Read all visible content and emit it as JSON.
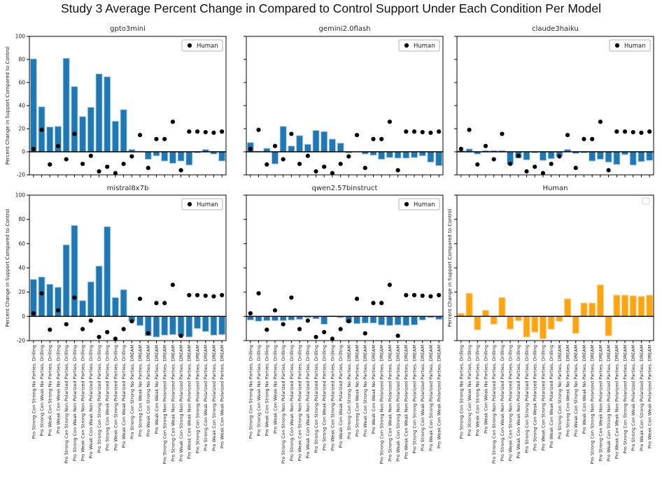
{
  "figure": {
    "title": "Study 3 Average Percent Change in Compared to Control Support Under Each Condition Per Model",
    "background": "#ffffff"
  },
  "chart_data": {
    "type": "bar",
    "layout": {
      "rows": 2,
      "cols": 3,
      "grid": false,
      "legend_position": "upper right",
      "xticklabels_rotation": 90
    },
    "ylabel": "Percent Change in Support Compared to Control",
    "ylim": [
      -20,
      100
    ],
    "yticks": [
      100,
      80,
      60,
      40,
      20,
      0,
      -20
    ],
    "legend_label": "Human",
    "colors": {
      "model_bar": "#1f77b4",
      "model_bar_edge": "#a8cbe4",
      "human_bar": "#ffa510",
      "human_bar_edge": "#ffcf8d",
      "dot": "#000000",
      "axis": "#000000",
      "zero_line": "#000000",
      "legend_border": "#9e9e9e"
    },
    "categories": [
      "Pro Strong Con Strong No Parties, Drilling",
      "Pro Strong Con Weak No Parties, Drilling",
      "Pro Weak Con Strong No Parties, Drilling",
      "Pro Weak Con Weak No Parties, Drilling",
      "Pro Strong Con Strong Non Polarized Parties, Drilling",
      "Pro Strong Con Weak Non Polarized Parties, Drilling",
      "Pro Weak Con Strong Non Polarized Parties, Drilling",
      "Pro Weak Con Weak Non Polarized Parties, Drilling",
      "Pro Strong Con Strong Polarized Parties, Drilling",
      "Pro Strong Con Weak Polarized Parties, Drilling",
      "Pro Weak Con Strong Polarized Parties, Drilling",
      "Pro Weak Con Weak Polarized Parties, Drilling",
      "Pro Strong Con Strong No Parties, DREAM",
      "Pro Strong Con Weak No Parties, DREAM",
      "Pro Weak Con Strong No Parties, DREAM",
      "Pro Weak Con Weak No Parties, DREAM",
      "Pro Strong Con Strong Non Polarized Parties, DREAM",
      "Pro Strong Con Weak Non Polarized Parties, DREAM",
      "Pro Weak Con Strong Non Polarized Parties, DREAM",
      "Pro Weak Con Weak Non Polarized Parties, DREAM",
      "Pro Strong Con Strong Polarized Parties, DREAM",
      "Pro Strong Con Weak Polarized Parties, DREAM",
      "Pro Weak Con Strong Polarized Parties, DREAM",
      "Pro Weak Con Weak Polarized Parties, DREAM"
    ],
    "human_reference": [
      2.5,
      19,
      -11,
      5,
      -6.5,
      15.5,
      -10.5,
      -3.5,
      -17,
      -13,
      -18.5,
      -10.5,
      -4,
      14.5,
      -14,
      11,
      11,
      26,
      -16,
      17.5,
      17.5,
      17,
      16.5,
      17.5
    ],
    "subplots": [
      {
        "title": "gpto3mini",
        "series": "model",
        "show_yticklabels": true,
        "show_ylabel": true,
        "show_xticklabels": false,
        "legend": "human",
        "values": [
          80.5,
          39,
          21.5,
          22,
          81,
          56.5,
          30.5,
          38.5,
          67.5,
          65,
          26.5,
          36.5,
          2,
          0.5,
          -6.5,
          -3.5,
          -8,
          -10,
          -8,
          -11.5,
          -1,
          2,
          -2,
          -8
        ]
      },
      {
        "title": "gemini2.0flash",
        "series": "model",
        "show_yticklabels": false,
        "show_ylabel": false,
        "show_xticklabels": false,
        "legend": "human",
        "values": [
          8,
          0.5,
          3,
          -10.5,
          22,
          5,
          14,
          6.5,
          18.5,
          17.5,
          11,
          7.5,
          -1,
          0,
          -2,
          -3,
          -6.5,
          -5,
          -5.5,
          -5.5,
          -5,
          -3.5,
          -9,
          -12
        ]
      },
      {
        "title": "claude3haiku",
        "series": "model",
        "show_yticklabels": false,
        "show_ylabel": false,
        "show_xticklabels": false,
        "legend": "human",
        "values": [
          1,
          2.5,
          -2,
          1,
          1,
          1,
          -11,
          -5.5,
          -7,
          -1,
          -7.5,
          -6,
          -4,
          2,
          -1.5,
          -1,
          -8,
          -6.5,
          -9,
          -11,
          -2.5,
          -11.5,
          -8.5,
          -7.5
        ]
      },
      {
        "title": "mistral8x7b",
        "series": "model",
        "show_yticklabels": true,
        "show_ylabel": true,
        "show_xticklabels": true,
        "legend": "human",
        "values": [
          30.5,
          32.5,
          26.5,
          24,
          59,
          75,
          13,
          28.5,
          41.5,
          74,
          15.5,
          22,
          -4,
          -7.5,
          -16,
          -17,
          -15.5,
          -15,
          -16,
          -17,
          -10,
          -12.5,
          -15.5,
          -15
        ]
      },
      {
        "title": "qwen2.57binstruct",
        "series": "model",
        "show_yticklabels": false,
        "show_ylabel": false,
        "show_xticklabels": true,
        "legend": "human",
        "values": [
          -3,
          -4,
          -3.5,
          -3.5,
          -3.5,
          -3,
          -2.5,
          -1,
          -2,
          -6.5,
          0.5,
          -1,
          -5,
          -6,
          -5.5,
          -5.5,
          -7,
          -7.5,
          -7,
          -7.5,
          -7,
          -3,
          -1,
          -2.5
        ]
      },
      {
        "title": "Human",
        "series": "human",
        "show_yticklabels": false,
        "show_ylabel": true,
        "show_xticklabels": true,
        "legend": "empty",
        "values": [
          2.5,
          19,
          -11,
          5,
          -6.5,
          15.5,
          -10.5,
          -3.5,
          -17,
          -13,
          -18.5,
          -10.5,
          -4,
          14.5,
          -14,
          11,
          11,
          26,
          -16,
          17.5,
          17.5,
          17,
          16.5,
          17.5
        ]
      }
    ]
  }
}
